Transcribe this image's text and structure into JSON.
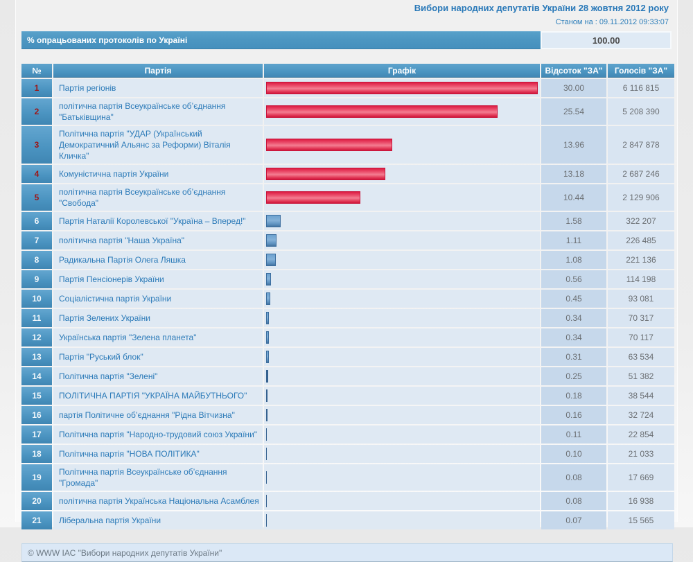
{
  "header": {
    "title": "Вибори народних депутатів України 28 жовтня 2012 року",
    "status": "Станом на : 09.11.2012 09:33:07",
    "protocols_label": "% опрацьованих протоколів по Україні",
    "protocols_value": "100.00"
  },
  "colors": {
    "accent_blue": "#4b95c1",
    "bar_red": "#e02547",
    "bar_blue": "#5b8fc0",
    "passed_number_red": "#9e1414",
    "party_text_blue": "#2b7ab8"
  },
  "table": {
    "columns": [
      "№",
      "Партія",
      "Графік",
      "Відсоток \"ЗА\"",
      "Голосів \"ЗА\""
    ],
    "rows": [
      {
        "num": "1",
        "party": "Партія регіонів",
        "percent": "30.00",
        "votes": "6 116 815",
        "passed": true
      },
      {
        "num": "2",
        "party": "політична партія Всеукраїнське об’єднання \"Батьківщина\"",
        "percent": "25.54",
        "votes": "5 208 390",
        "passed": true
      },
      {
        "num": "3",
        "party": "Політична партія \"УДАР (Український Демократичний Альянс за Реформи) Віталія Кличка\"",
        "percent": "13.96",
        "votes": "2 847 878",
        "passed": true
      },
      {
        "num": "4",
        "party": "Комуністична партія України",
        "percent": "13.18",
        "votes": "2 687 246",
        "passed": true
      },
      {
        "num": "5",
        "party": "політична партія Всеукраїнське об’єднання \"Свобода\"",
        "percent": "10.44",
        "votes": "2 129 906",
        "passed": true
      },
      {
        "num": "6",
        "party": "Партія Наталії Королевської \"Україна – Вперед!\"",
        "percent": "1.58",
        "votes": "322 207",
        "passed": false
      },
      {
        "num": "7",
        "party": "політична партія \"Наша Україна\"",
        "percent": "1.11",
        "votes": "226 485",
        "passed": false
      },
      {
        "num": "8",
        "party": "Радикальна Партія Олега Ляшка",
        "percent": "1.08",
        "votes": "221 136",
        "passed": false
      },
      {
        "num": "9",
        "party": "Партія Пенсіонерів України",
        "percent": "0.56",
        "votes": "114 198",
        "passed": false
      },
      {
        "num": "10",
        "party": "Соціалістична партія України",
        "percent": "0.45",
        "votes": "93 081",
        "passed": false
      },
      {
        "num": "11",
        "party": "Партія Зелених України",
        "percent": "0.34",
        "votes": "70 317",
        "passed": false
      },
      {
        "num": "12",
        "party": "Українська партія \"Зелена планета\"",
        "percent": "0.34",
        "votes": "70 117",
        "passed": false
      },
      {
        "num": "13",
        "party": "Партія \"Руський блок\"",
        "percent": "0.31",
        "votes": "63 534",
        "passed": false
      },
      {
        "num": "14",
        "party": "Політична партія \"Зелені\"",
        "percent": "0.25",
        "votes": "51 382",
        "passed": false
      },
      {
        "num": "15",
        "party": "ПОЛІТИЧНА ПАРТІЯ \"УКРАЇНА МАЙБУТНЬОГО\"",
        "percent": "0.18",
        "votes": "38 544",
        "passed": false
      },
      {
        "num": "16",
        "party": "партія Політичне об’єднання \"Рідна Вітчизна\"",
        "percent": "0.16",
        "votes": "32 724",
        "passed": false
      },
      {
        "num": "17",
        "party": "Політична партія \"Народно-трудовий союз України\"",
        "percent": "0.11",
        "votes": "22 854",
        "passed": false
      },
      {
        "num": "18",
        "party": "Політична партія \"НОВА ПОЛІТИКА\"",
        "percent": "0.10",
        "votes": "21 033",
        "passed": false
      },
      {
        "num": "19",
        "party": "Політична партія Всеукраїнське об’єднання \"Громада\"",
        "percent": "0.08",
        "votes": "17 669",
        "passed": false
      },
      {
        "num": "20",
        "party": "політична партія Українська Національна Асамблея",
        "percent": "0.08",
        "votes": "16 938",
        "passed": false
      },
      {
        "num": "21",
        "party": "Ліберальна партія України",
        "percent": "0.07",
        "votes": "15 565",
        "passed": false
      }
    ]
  },
  "chart_data": {
    "type": "bar",
    "title": "Вибори народних депутатів України 28 жовтня 2012 року",
    "categories": [
      "Партія регіонів",
      "Батьківщина",
      "УДАР",
      "Комуністична партія України",
      "Свобода",
      "Україна – Вперед!",
      "Наша Україна",
      "Радикальна Партія Олега Ляшка",
      "Партія Пенсіонерів України",
      "Соціалістична партія України",
      "Партія Зелених України",
      "Зелена планета",
      "Руський блок",
      "Зелені",
      "УКРАЇНА МАЙБУТНЬОГО",
      "Рідна Вітчизна",
      "Народно-трудовий союз України",
      "НОВА ПОЛІТИКА",
      "Громада",
      "Українська Національна Асамблея",
      "Ліберальна партія України"
    ],
    "values": [
      30.0,
      25.54,
      13.96,
      13.18,
      10.44,
      1.58,
      1.11,
      1.08,
      0.56,
      0.45,
      0.34,
      0.34,
      0.31,
      0.25,
      0.18,
      0.16,
      0.11,
      0.1,
      0.08,
      0.08,
      0.07
    ],
    "xlabel": "Відсоток \"ЗА\"",
    "ylabel": "",
    "xlim": [
      0,
      30
    ],
    "legend": false,
    "orientation": "horizontal"
  },
  "footer": {
    "copyright": "© WWW ІАС \"Вибори народних депутатів України\""
  }
}
